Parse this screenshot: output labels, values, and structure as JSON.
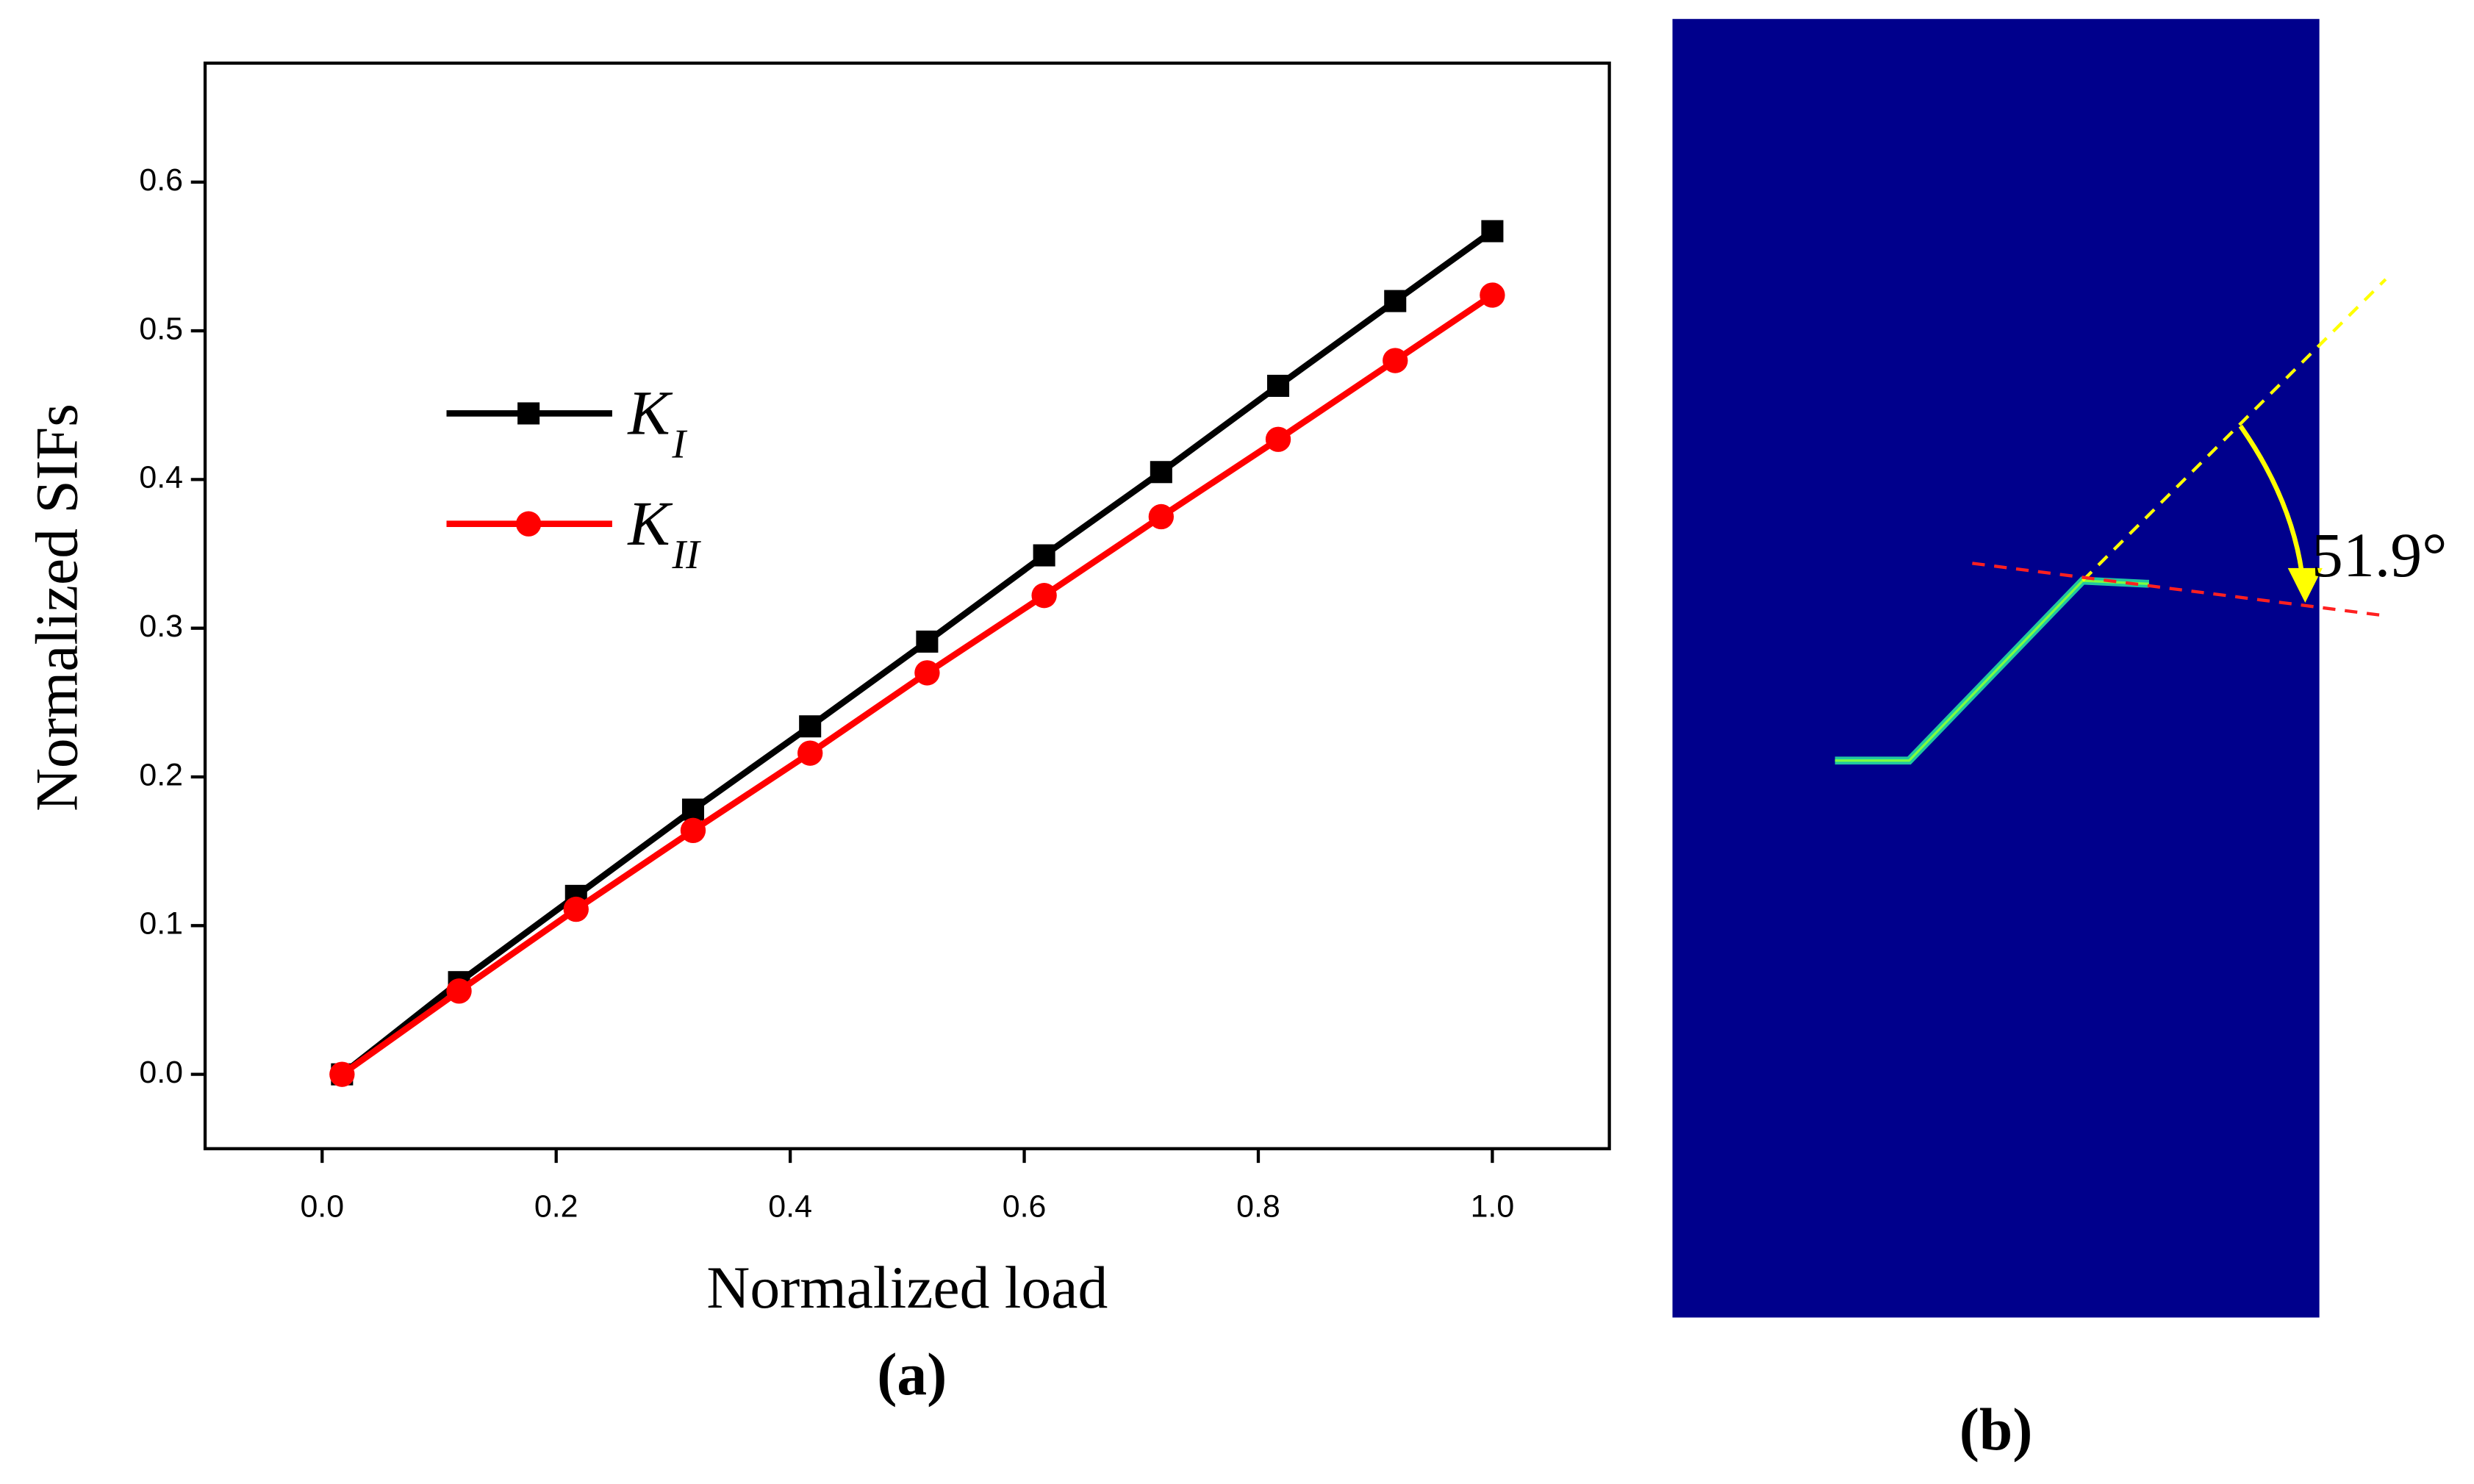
{
  "chart_data": {
    "type": "line",
    "x_label": "Normalized load",
    "y_label": "Normalized SIFs",
    "panel_label": "(a)",
    "x": [
      0.017,
      0.117,
      0.217,
      0.317,
      0.417,
      0.517,
      0.617,
      0.717,
      0.817,
      0.917,
      1.0
    ],
    "series": [
      {
        "name": "K",
        "name_subscript": "I",
        "color": "#000000",
        "marker": "square",
        "values": [
          0.0,
          0.062,
          0.12,
          0.178,
          0.234,
          0.291,
          0.349,
          0.405,
          0.463,
          0.52,
          0.567
        ]
      },
      {
        "name": "K",
        "name_subscript": "II",
        "color": "#ff0000",
        "marker": "circle",
        "values": [
          0.0,
          0.056,
          0.111,
          0.164,
          0.216,
          0.27,
          0.322,
          0.375,
          0.427,
          0.48,
          0.524
        ]
      }
    ],
    "xlim": [
      -0.1,
      1.1
    ],
    "ylim": [
      -0.05,
      0.68
    ],
    "xticks": [
      {
        "value": 0,
        "label": "0.0"
      },
      0.2,
      0.4,
      0.6,
      0.8,
      {
        "value": 1,
        "label": "1.0"
      }
    ],
    "yticks": [
      {
        "value": 0,
        "label": "0.0"
      },
      0.1,
      0.2,
      0.3,
      0.4,
      0.5,
      0.6
    ],
    "grid": false
  },
  "figure_b": {
    "annotation": "51.9°",
    "panel_label": "(b)"
  }
}
